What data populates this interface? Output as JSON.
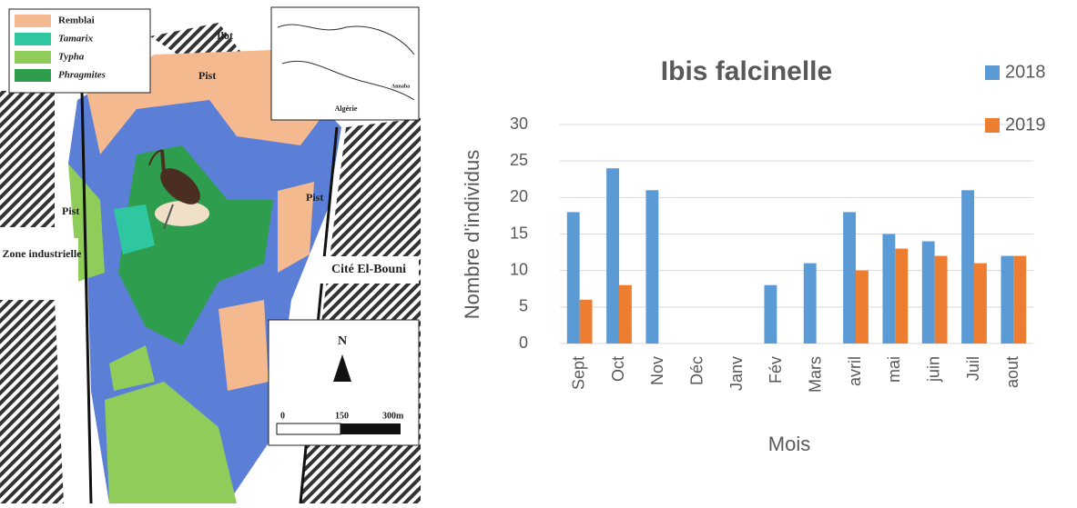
{
  "map": {
    "legend": [
      "Remblai",
      "Tamarix",
      "Typha",
      "Phragmites"
    ],
    "labels": {
      "ilot": "Ilot",
      "pist_top": "Pist",
      "pist_left": "Pist",
      "pist_right": "Pist",
      "zone": "Zone industrielle",
      "cite": "Cité El-Bouni",
      "algerie": "Algérie",
      "annaba": "Annaba",
      "north": "N"
    },
    "scale": [
      "0",
      "150",
      "300m"
    ]
  },
  "chart_data": {
    "type": "bar",
    "title": "Ibis falcinelle",
    "categories": [
      "Sept",
      "Oct",
      "Nov",
      "Déc",
      "Janv",
      "Fév",
      "Mars",
      "avril",
      "mai",
      "juin",
      "Juil",
      "aout"
    ],
    "series": [
      {
        "name": "2018",
        "color": "#5b9bd5",
        "values": [
          18,
          24,
          21,
          null,
          null,
          8,
          11,
          18,
          15,
          14,
          21,
          12
        ]
      },
      {
        "name": "2019",
        "color": "#ed7d31",
        "values": [
          6,
          8,
          null,
          null,
          null,
          null,
          null,
          10,
          13,
          12,
          11,
          12
        ]
      }
    ],
    "ylabel": "Nombre d'individus",
    "xlabel": "Mois",
    "ylim": [
      0,
      30
    ],
    "yticks": [
      0,
      5,
      10,
      15,
      20,
      25,
      30
    ],
    "grid": true
  }
}
